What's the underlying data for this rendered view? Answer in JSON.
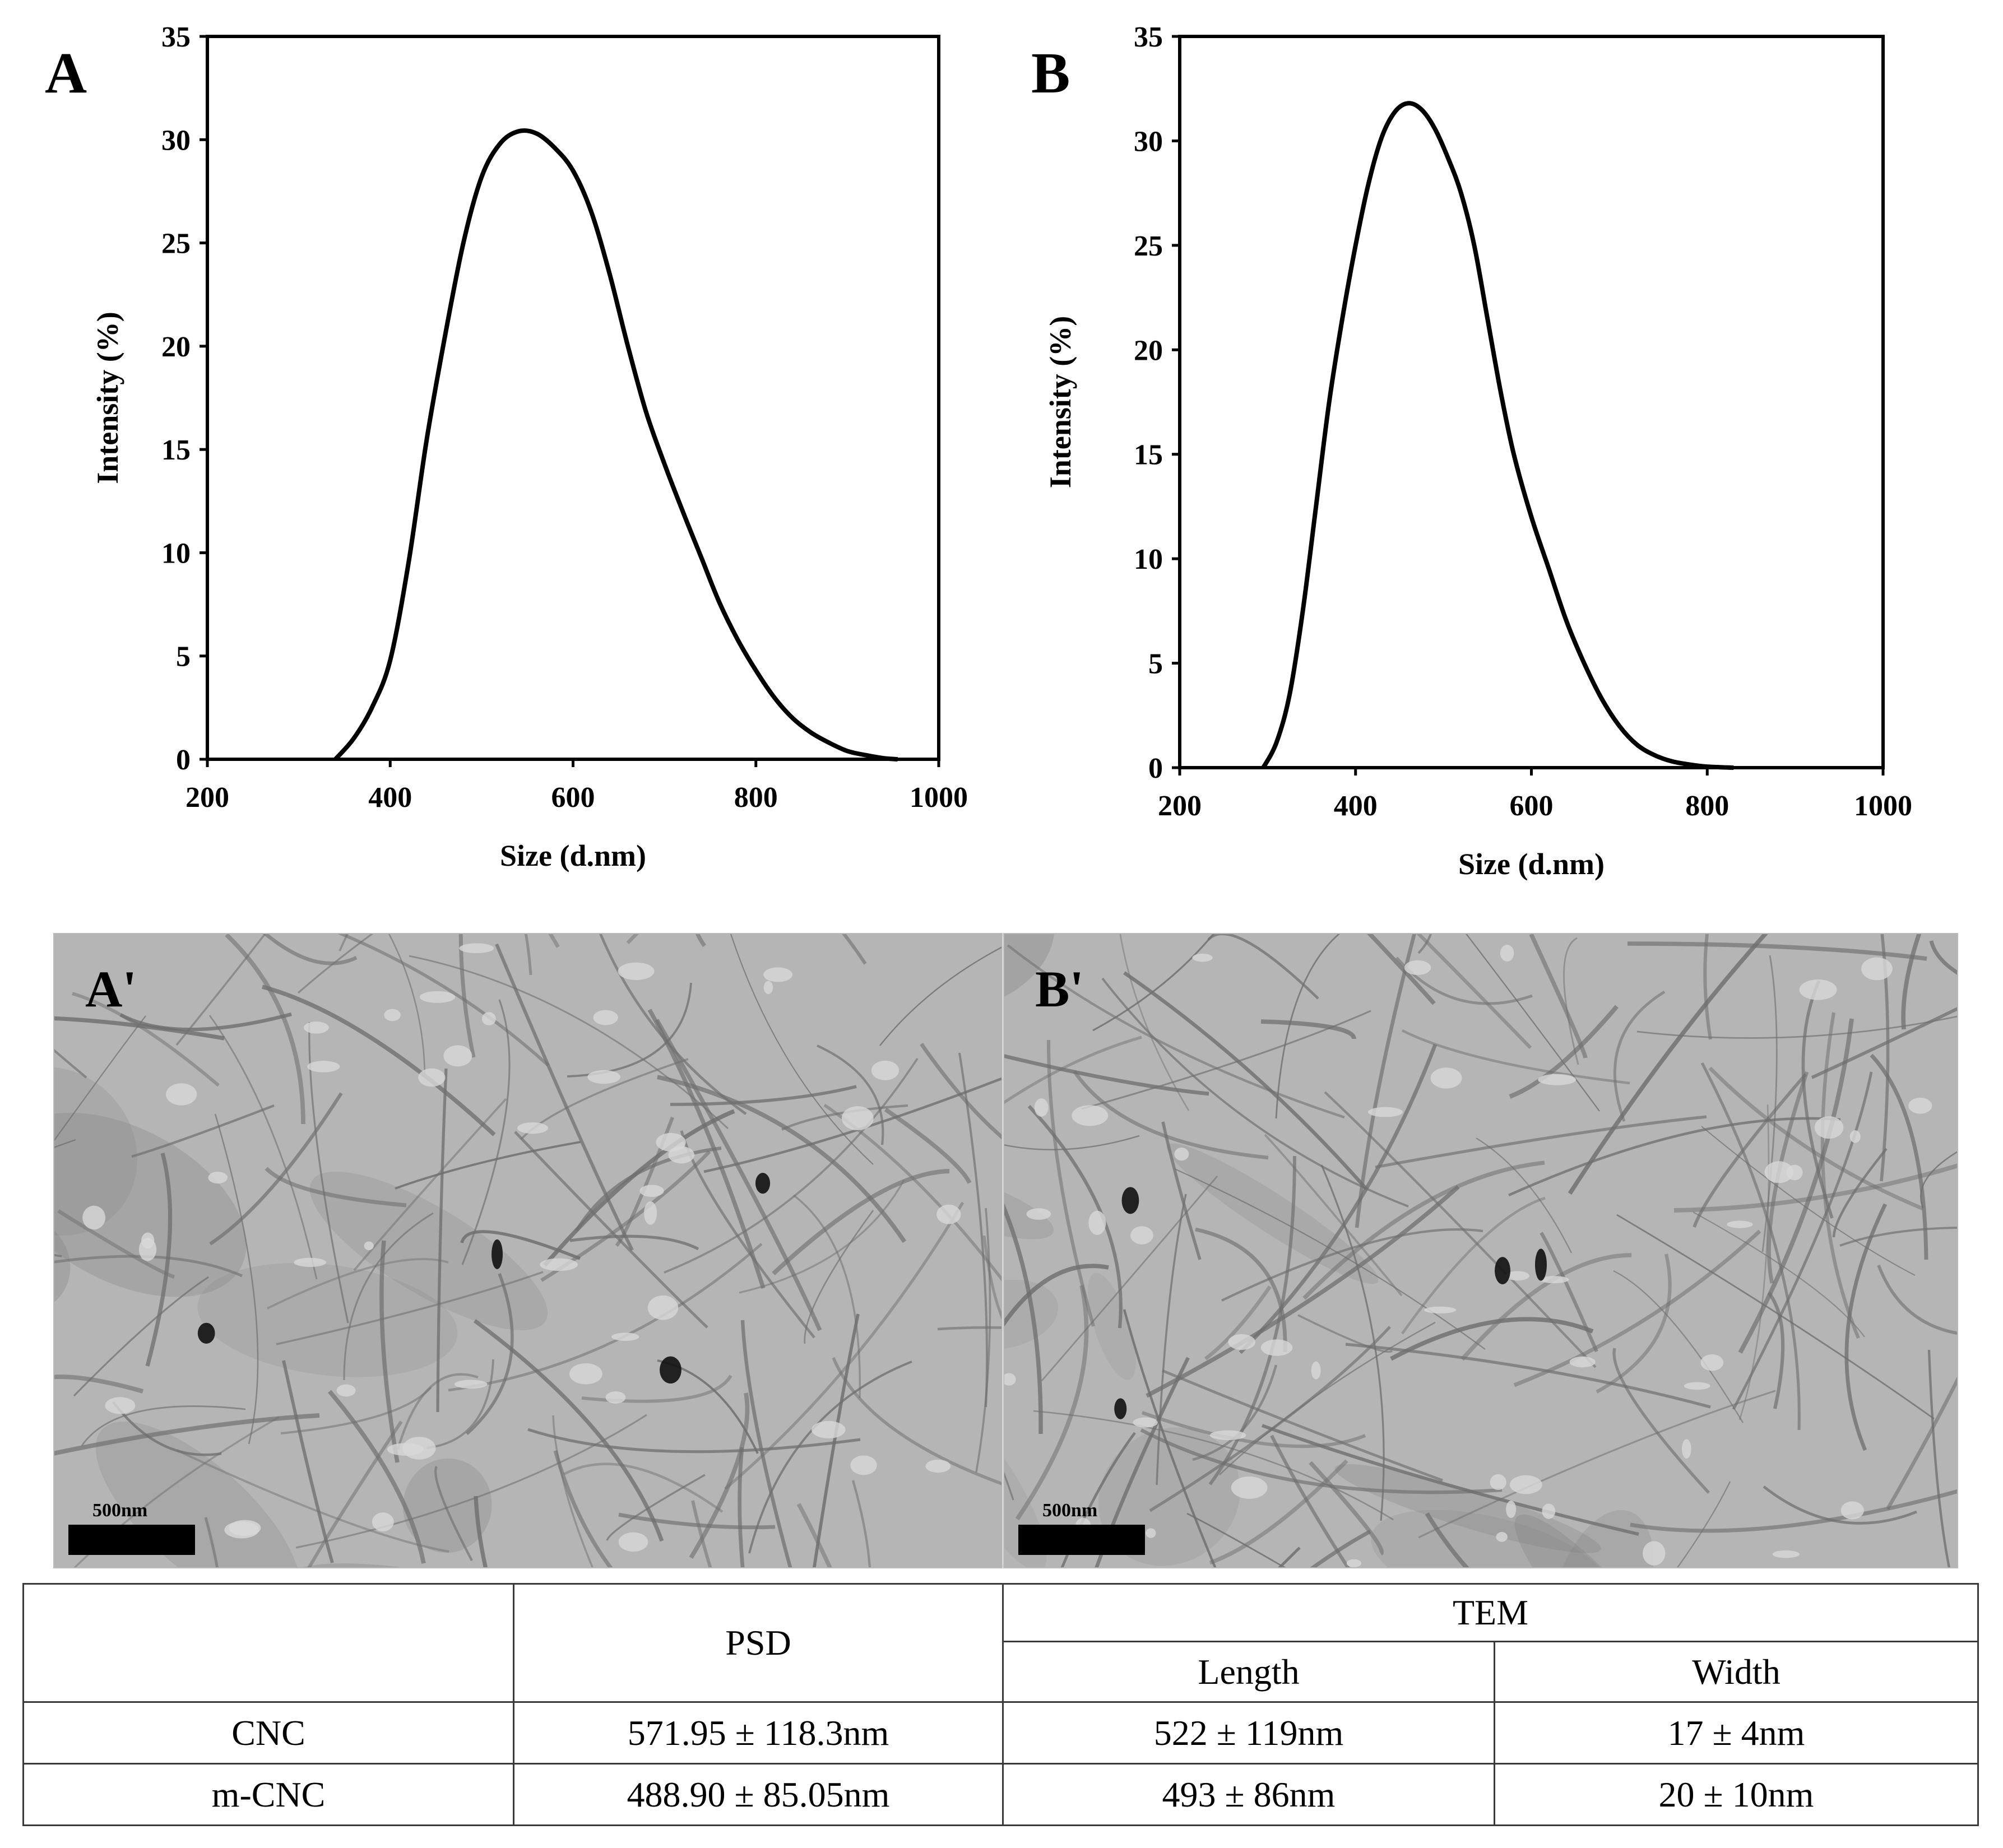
{
  "chart_data": [
    {
      "type": "line",
      "panel_label": "A",
      "xlabel": "Size (d.nm)",
      "ylabel": "Intensity (%)",
      "xlim": [
        200,
        1000
      ],
      "ylim": [
        0,
        35
      ],
      "xticks": [
        200,
        400,
        600,
        800,
        1000
      ],
      "yticks": [
        0,
        5,
        10,
        15,
        20,
        25,
        30,
        35
      ],
      "grid": false,
      "series": [
        {
          "x": [
            340,
            360,
            380,
            400,
            420,
            440,
            460,
            480,
            500,
            520,
            540,
            560,
            580,
            600,
            620,
            640,
            660,
            680,
            700,
            720,
            740,
            760,
            780,
            800,
            820,
            840,
            860,
            880,
            900,
            920,
            940,
            955
          ],
          "y": [
            0,
            1.0,
            2.5,
            4.8,
            9.5,
            15.5,
            20.5,
            25.0,
            28.2,
            29.8,
            30.4,
            30.3,
            29.6,
            28.5,
            26.5,
            23.5,
            20.0,
            16.8,
            14.3,
            12.0,
            9.8,
            7.6,
            5.8,
            4.3,
            3.0,
            2.0,
            1.3,
            0.8,
            0.4,
            0.2,
            0.05,
            0
          ]
        }
      ]
    },
    {
      "type": "line",
      "panel_label": "B",
      "xlabel": "Size (d.nm)",
      "ylabel": "Intensity (%)",
      "xlim": [
        200,
        1000
      ],
      "ylim": [
        0,
        35
      ],
      "xticks": [
        200,
        400,
        600,
        800,
        1000
      ],
      "yticks": [
        0,
        5,
        10,
        15,
        20,
        25,
        30,
        35
      ],
      "grid": false,
      "series": [
        {
          "x": [
            295,
            310,
            325,
            340,
            355,
            370,
            385,
            400,
            415,
            430,
            445,
            460,
            475,
            490,
            505,
            520,
            535,
            550,
            565,
            580,
            600,
            620,
            640,
            660,
            680,
            700,
            720,
            740,
            760,
            780,
            800,
            830
          ],
          "y": [
            0,
            1.2,
            3.5,
            7.5,
            12.5,
            17.5,
            21.5,
            25.0,
            28.0,
            30.2,
            31.4,
            31.8,
            31.5,
            30.6,
            29.2,
            27.5,
            25.0,
            21.5,
            18.0,
            15.0,
            12.0,
            9.5,
            7.0,
            5.0,
            3.3,
            2.0,
            1.1,
            0.6,
            0.3,
            0.15,
            0.05,
            0
          ]
        }
      ]
    }
  ],
  "tem_images": [
    {
      "label": "A'",
      "scale_label": "500nm"
    },
    {
      "label": "B'",
      "scale_label": "500nm"
    }
  ],
  "table": {
    "header_psd": "PSD",
    "header_tem": "TEM",
    "header_length": "Length",
    "header_width": "Width",
    "rows": [
      {
        "name": "CNC",
        "psd": "571.95 ± 118.3nm",
        "length": "522 ± 119nm",
        "width": "17 ± 4nm"
      },
      {
        "name": "m-CNC",
        "psd": "488.90 ± 85.05nm",
        "length": "493 ± 86nm",
        "width": "20 ± 10nm"
      }
    ]
  }
}
